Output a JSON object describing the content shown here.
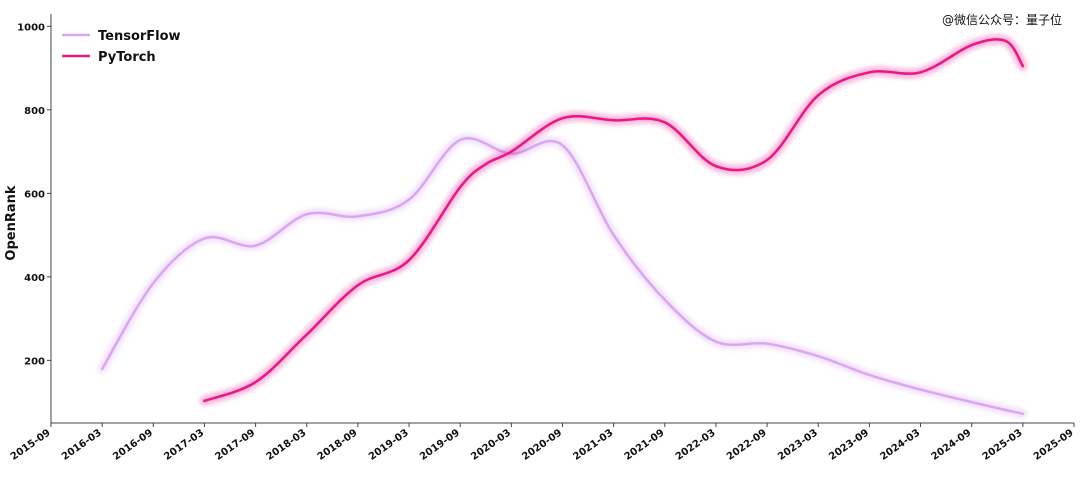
{
  "watermark": "@微信公众号：量子位",
  "chart_data": {
    "type": "line",
    "ylabel": "OpenRank",
    "xlabel": "",
    "x_ticks": [
      "2015-09",
      "2016-03",
      "2016-09",
      "2017-03",
      "2017-09",
      "2018-03",
      "2018-09",
      "2019-03",
      "2019-09",
      "2020-03",
      "2020-09",
      "2021-03",
      "2021-09",
      "2022-03",
      "2022-09",
      "2023-03",
      "2023-09",
      "2024-03",
      "2024-09",
      "2025-03",
      "2025-09"
    ],
    "y_ticks": [
      200,
      400,
      600,
      800,
      1000
    ],
    "ylim": [
      50,
      1020
    ],
    "xlim": [
      "2015-09",
      "2025-09"
    ],
    "legend_position": "top-left",
    "grid": false,
    "series": [
      {
        "name": "TensorFlow",
        "color": "#d9a6f2",
        "x": [
          "2016-03",
          "2016-09",
          "2017-03",
          "2017-09",
          "2018-03",
          "2018-09",
          "2019-03",
          "2019-09",
          "2020-03",
          "2020-09",
          "2021-03",
          "2021-09",
          "2022-03",
          "2022-09",
          "2023-03",
          "2023-09",
          "2024-03",
          "2024-09",
          "2025-03"
        ],
        "values": [
          180,
          385,
          492,
          475,
          550,
          545,
          585,
          728,
          695,
          715,
          500,
          345,
          245,
          240,
          210,
          165,
          130,
          100,
          72
        ]
      },
      {
        "name": "PyTorch",
        "color": "#e8178a",
        "x": [
          "2017-03",
          "2017-09",
          "2018-03",
          "2018-09",
          "2019-03",
          "2019-09",
          "2019-12",
          "2020-03",
          "2020-09",
          "2021-03",
          "2021-09",
          "2022-03",
          "2022-09",
          "2023-03",
          "2023-09",
          "2024-03",
          "2024-09",
          "2025-01",
          "2025-03"
        ],
        "values": [
          103,
          148,
          262,
          380,
          440,
          615,
          670,
          700,
          780,
          775,
          770,
          665,
          680,
          835,
          890,
          890,
          955,
          965,
          905
        ]
      }
    ]
  }
}
